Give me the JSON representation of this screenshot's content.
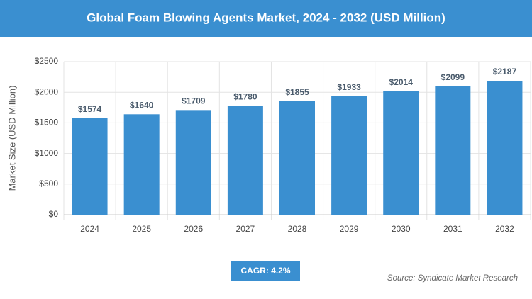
{
  "chart_data": {
    "type": "bar",
    "title": "Global Foam Blowing Agents Market, 2024 - 2032 (USD Million)",
    "y_label": "Market Size (USD Million)",
    "categories": [
      "2024",
      "2025",
      "2026",
      "2027",
      "2028",
      "2029",
      "2030",
      "2031",
      "2032"
    ],
    "values": [
      1574,
      1640,
      1709,
      1780,
      1855,
      1933,
      2014,
      2099,
      2187
    ],
    "value_labels": [
      "$1574",
      "$1640",
      "$1709",
      "$1780",
      "$1855",
      "$1933",
      "$2014",
      "$2099",
      "$2187"
    ],
    "color": "#3a8fd0",
    "ylim": [
      0,
      2500
    ],
    "yticks": [
      {
        "value": 0,
        "label": "$0"
      },
      {
        "value": 500,
        "label": "$500"
      },
      {
        "value": 1000,
        "label": "$1000"
      },
      {
        "value": 1500,
        "label": "$1500"
      },
      {
        "value": 2000,
        "label": "$2000"
      },
      {
        "value": 2500,
        "label": "$2500"
      }
    ],
    "grid": true,
    "annotations": [
      "CAGR: 4.2%",
      "Source: Syndicate Market Research"
    ]
  }
}
